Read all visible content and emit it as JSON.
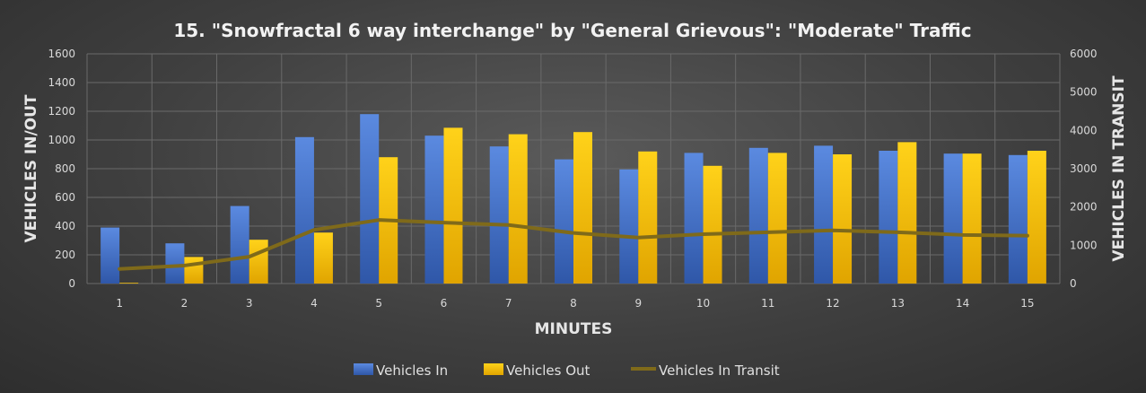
{
  "chart_data": {
    "type": "bar",
    "title": "15. \"Snowfractal 6 way interchange\" by \"General Grievous\": \"Moderate\" Traffic",
    "xlabel": "MINUTES",
    "ylabel": "VEHICLES IN/OUT",
    "y2label": "VEHICLES IN TRANSIT",
    "categories": [
      "1",
      "2",
      "3",
      "4",
      "5",
      "6",
      "7",
      "8",
      "9",
      "10",
      "11",
      "12",
      "13",
      "14",
      "15"
    ],
    "ylim": [
      0,
      1600
    ],
    "y2lim": [
      0,
      6000
    ],
    "yticks": [
      "0",
      "200",
      "400",
      "600",
      "800",
      "1000",
      "1200",
      "1400",
      "1600"
    ],
    "y2ticks": [
      "0",
      "1000",
      "2000",
      "3000",
      "4000",
      "5000",
      "6000"
    ],
    "grid": true,
    "legend_position": "bottom",
    "series": [
      {
        "name": "Vehicles In",
        "type": "bar",
        "axis": "left",
        "color": "#4472c4",
        "values": [
          390,
          280,
          540,
          1020,
          1180,
          1030,
          955,
          865,
          795,
          910,
          945,
          960,
          925,
          905,
          895
        ]
      },
      {
        "name": "Vehicles Out",
        "type": "bar",
        "axis": "left",
        "color": "#ffc000",
        "values": [
          5,
          185,
          305,
          355,
          880,
          1085,
          1040,
          1055,
          920,
          820,
          910,
          900,
          985,
          905,
          925
        ]
      },
      {
        "name": "Vehicles In Transit",
        "type": "line",
        "axis": "right",
        "color": "#7f6a1a",
        "values": [
          380,
          470,
          700,
          1400,
          1660,
          1590,
          1530,
          1320,
          1200,
          1290,
          1340,
          1390,
          1340,
          1270,
          1250
        ]
      }
    ]
  }
}
